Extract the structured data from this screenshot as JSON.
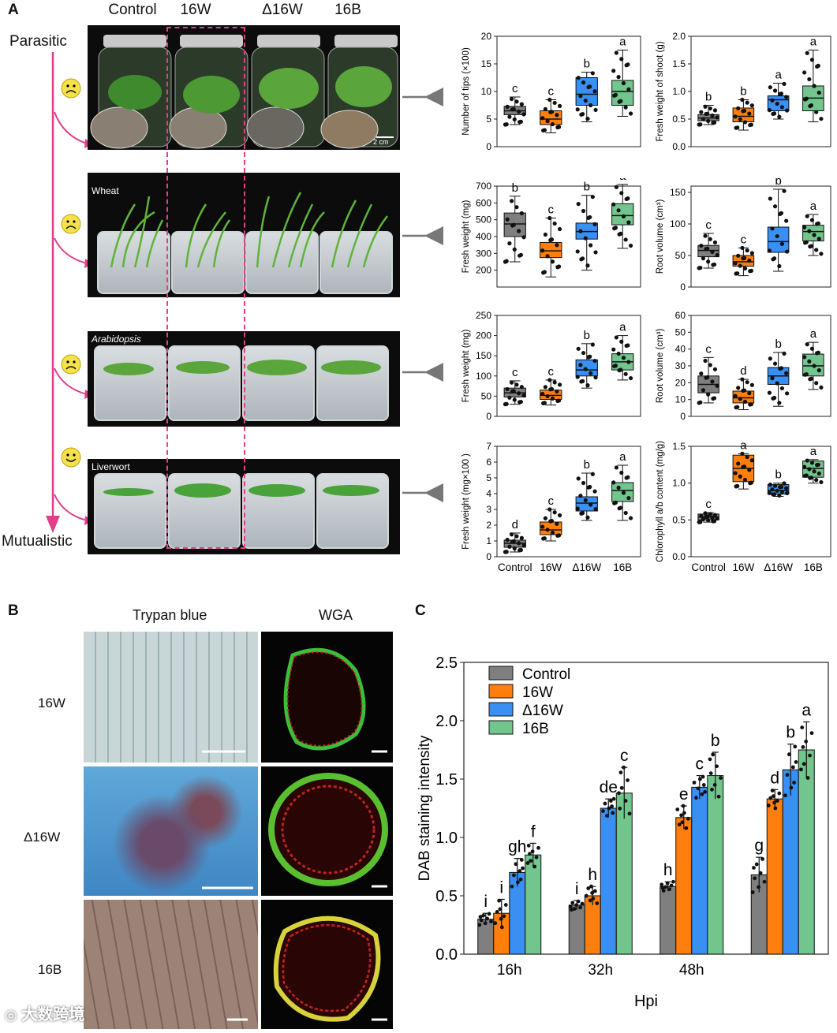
{
  "panel_a": {
    "letter": "A",
    "columns": [
      "Control",
      "16W",
      "Δ16W",
      "16B"
    ],
    "axis_top": "Parasitic",
    "axis_bottom": "Mutualistic",
    "photo_labels": [
      "Wheat",
      "Arabidopsis",
      "Liverwort"
    ],
    "scale_bar": "2 cm",
    "faces": [
      "sad",
      "sad",
      "sad",
      "happy"
    ]
  },
  "panel_b": {
    "letter": "B",
    "col_heads": [
      "Trypan blue",
      "WGA"
    ],
    "rows": [
      "16W",
      "Δ16W",
      "16B"
    ]
  },
  "panel_c": {
    "letter": "C"
  },
  "watermark": "大数跨境",
  "colors": {
    "control": "#7f7f7f",
    "16W": "#ff7f0e",
    "d16W": "#3a8ff2",
    "16B": "#72c58c",
    "magenta": "#e0408a"
  },
  "chart_data": [
    {
      "type": "box",
      "id": "tips",
      "ylabel": "Number of tips (×100)",
      "ylim": [
        0,
        20
      ],
      "yticks": [
        0,
        5,
        10,
        15,
        20
      ],
      "categories": [
        "Control",
        "16W",
        "Δ16W",
        "16B"
      ],
      "show_xticks": false,
      "boxes": [
        {
          "q1": 5.8,
          "median": 6.5,
          "q3": 7.3,
          "whislo": 4.0,
          "whishi": 9.0
        },
        {
          "q1": 4.0,
          "median": 5.0,
          "q3": 6.5,
          "whislo": 2.5,
          "whishi": 8.5
        },
        {
          "q1": 7.5,
          "median": 9.5,
          "q3": 12.5,
          "whislo": 4.5,
          "whishi": 13.5
        },
        {
          "q1": 7.5,
          "median": 10.0,
          "q3": 12.0,
          "whislo": 5.5,
          "whishi": 17.5
        }
      ],
      "letters": [
        "c",
        "c",
        "b",
        "a"
      ]
    },
    {
      "type": "box",
      "id": "shoot",
      "ylabel": "Fresh weight of shoot (g)",
      "ylim": [
        0,
        2.0
      ],
      "yticks": [
        0.0,
        0.5,
        1.0,
        1.5,
        2.0
      ],
      "categories": [
        "Control",
        "16W",
        "Δ16W",
        "16B"
      ],
      "show_xticks": false,
      "boxes": [
        {
          "q1": 0.47,
          "median": 0.52,
          "q3": 0.58,
          "whislo": 0.4,
          "whishi": 0.75
        },
        {
          "q1": 0.45,
          "median": 0.55,
          "q3": 0.7,
          "whislo": 0.3,
          "whishi": 0.85
        },
        {
          "q1": 0.65,
          "median": 0.85,
          "q3": 0.92,
          "whislo": 0.5,
          "whishi": 1.15
        },
        {
          "q1": 0.65,
          "median": 0.88,
          "q3": 1.1,
          "whislo": 0.45,
          "whishi": 1.75
        }
      ],
      "letters": [
        "b",
        "b",
        "a",
        "a"
      ]
    },
    {
      "type": "box",
      "id": "wheat_fw",
      "ylabel": "Fresh weight (mg)",
      "ylim": [
        100,
        700
      ],
      "yticks": [
        200,
        300,
        400,
        500,
        600,
        700
      ],
      "categories": [
        "Control",
        "16W",
        "Δ16W",
        "16B"
      ],
      "show_xticks": false,
      "boxes": [
        {
          "q1": 400,
          "median": 475,
          "q3": 540,
          "whislo": 250,
          "whishi": 640
        },
        {
          "q1": 275,
          "median": 315,
          "q3": 365,
          "whislo": 160,
          "whishi": 510
        },
        {
          "q1": 385,
          "median": 430,
          "q3": 480,
          "whislo": 200,
          "whishi": 645
        },
        {
          "q1": 470,
          "median": 525,
          "q3": 595,
          "whislo": 330,
          "whishi": 710
        }
      ],
      "letters": [
        "b",
        "c",
        "b",
        "a"
      ]
    },
    {
      "type": "box",
      "id": "wheat_rv",
      "ylabel": "Root volume (cm³)",
      "ylim": [
        0,
        160
      ],
      "yticks": [
        0,
        50,
        100,
        150
      ],
      "categories": [
        "Control",
        "16W",
        "Δ16W",
        "16B"
      ],
      "show_xticks": false,
      "boxes": [
        {
          "q1": 48,
          "median": 58,
          "q3": 66,
          "whislo": 30,
          "whishi": 85
        },
        {
          "q1": 33,
          "median": 40,
          "q3": 50,
          "whislo": 18,
          "whishi": 62
        },
        {
          "q1": 55,
          "median": 72,
          "q3": 95,
          "whislo": 25,
          "whishi": 155
        },
        {
          "q1": 73,
          "median": 88,
          "q3": 98,
          "whislo": 50,
          "whishi": 115
        }
      ],
      "letters": [
        "c",
        "c",
        "b",
        "a"
      ]
    },
    {
      "type": "box",
      "id": "arab_fw",
      "ylabel": "Fresh weight (mg)",
      "ylim": [
        0,
        250
      ],
      "yticks": [
        0,
        50,
        100,
        150,
        200,
        250
      ],
      "categories": [
        "Control",
        "16W",
        "Δ16W",
        "16B"
      ],
      "show_xticks": false,
      "boxes": [
        {
          "q1": 48,
          "median": 58,
          "q3": 70,
          "whislo": 30,
          "whishi": 88
        },
        {
          "q1": 42,
          "median": 52,
          "q3": 65,
          "whislo": 28,
          "whishi": 90
        },
        {
          "q1": 100,
          "median": 115,
          "q3": 140,
          "whislo": 70,
          "whishi": 180
        },
        {
          "q1": 115,
          "median": 135,
          "q3": 155,
          "whislo": 90,
          "whishi": 200
        }
      ],
      "letters": [
        "c",
        "c",
        "b",
        "a"
      ]
    },
    {
      "type": "box",
      "id": "arab_rv",
      "ylabel": "Root volume (cm³)",
      "ylim": [
        0,
        60
      ],
      "yticks": [
        0,
        10,
        20,
        30,
        40,
        50,
        60
      ],
      "categories": [
        "Control",
        "16W",
        "Δ16W",
        "16B"
      ],
      "show_xticks": false,
      "boxes": [
        {
          "q1": 14,
          "median": 19,
          "q3": 24,
          "whislo": 8,
          "whishi": 35
        },
        {
          "q1": 8,
          "median": 11,
          "q3": 15,
          "whislo": 4,
          "whishi": 22
        },
        {
          "q1": 19,
          "median": 24,
          "q3": 29,
          "whislo": 6,
          "whishi": 38
        },
        {
          "q1": 24,
          "median": 30,
          "q3": 37,
          "whislo": 16,
          "whishi": 44
        }
      ],
      "letters": [
        "c",
        "d",
        "b",
        "a"
      ]
    },
    {
      "type": "box",
      "id": "liver_fw",
      "ylabel": "Fresh weight (mg×100 )",
      "ylim": [
        0,
        7
      ],
      "yticks": [
        0,
        1,
        2,
        3,
        4,
        5,
        6,
        7
      ],
      "categories": [
        "Control",
        "16W",
        "Δ16W",
        "16B"
      ],
      "show_xticks": true,
      "boxes": [
        {
          "q1": 0.6,
          "median": 0.85,
          "q3": 1.05,
          "whislo": 0.3,
          "whishi": 1.5
        },
        {
          "q1": 1.4,
          "median": 1.7,
          "q3": 2.2,
          "whislo": 1.0,
          "whishi": 3.0
        },
        {
          "q1": 2.9,
          "median": 3.4,
          "q3": 3.8,
          "whislo": 2.3,
          "whishi": 5.3
        },
        {
          "q1": 3.5,
          "median": 4.2,
          "q3": 4.7,
          "whislo": 2.3,
          "whishi": 5.8
        }
      ],
      "letters": [
        "d",
        "c",
        "b",
        "a"
      ]
    },
    {
      "type": "box",
      "id": "chloro",
      "ylabel": "Chlorophyll a/b content (mg/g)",
      "ylim": [
        0,
        1.5
      ],
      "yticks": [
        0.0,
        0.5,
        1.0,
        1.5
      ],
      "categories": [
        "Control",
        "16W",
        "Δ16W",
        "16B"
      ],
      "show_xticks": true,
      "boxes": [
        {
          "q1": 0.5,
          "median": 0.54,
          "q3": 0.58,
          "whislo": 0.47,
          "whishi": 0.6
        },
        {
          "q1": 1.02,
          "median": 1.2,
          "q3": 1.38,
          "whislo": 0.92,
          "whishi": 1.4
        },
        {
          "q1": 0.85,
          "median": 0.9,
          "q3": 0.98,
          "whislo": 0.82,
          "whishi": 1.0
        },
        {
          "q1": 1.08,
          "median": 1.2,
          "q3": 1.3,
          "whislo": 1.0,
          "whishi": 1.32
        }
      ],
      "letters": [
        "c",
        "a",
        "b",
        "a"
      ]
    },
    {
      "type": "bar",
      "id": "dab",
      "title": "",
      "xlabel": "Hpi",
      "ylabel": "DAB staining intensity",
      "ylim": [
        0,
        2.5
      ],
      "yticks": [
        0.0,
        0.5,
        1.0,
        1.5,
        2.0,
        2.5
      ],
      "categories": [
        "16h",
        "32h",
        "48h",
        ""
      ],
      "series": [
        {
          "name": "Control",
          "values": [
            0.3,
            0.42,
            0.58,
            0.68
          ],
          "errors": [
            0.05,
            0.04,
            0.04,
            0.15
          ],
          "letters": [
            "i",
            "i",
            "h",
            "g"
          ]
        },
        {
          "name": "16W",
          "values": [
            0.35,
            0.5,
            1.17,
            1.33
          ],
          "errors": [
            0.12,
            0.08,
            0.1,
            0.08
          ],
          "letters": [
            "i",
            "h",
            "e",
            "d"
          ]
        },
        {
          "name": "Δ16W",
          "values": [
            0.7,
            1.25,
            1.43,
            1.58
          ],
          "errors": [
            0.12,
            0.08,
            0.1,
            0.22
          ],
          "letters": [
            "gh",
            "de",
            "c",
            "b"
          ]
        },
        {
          "name": "16B",
          "values": [
            0.85,
            1.38,
            1.53,
            1.75
          ],
          "errors": [
            0.1,
            0.22,
            0.2,
            0.24
          ],
          "letters": [
            "f",
            "c",
            "b",
            "a"
          ]
        }
      ],
      "legend": "top-left"
    }
  ]
}
